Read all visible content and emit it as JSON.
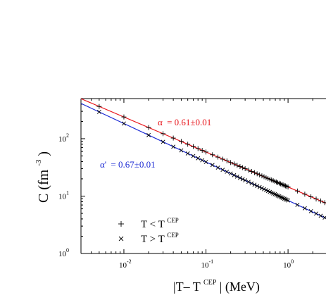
{
  "chart_data": {
    "type": "scatter",
    "x_scale": "log",
    "y_scale": "log",
    "xlim": [
      0.003,
      2.9
    ],
    "ylim": [
      1,
      500
    ],
    "x_ticks": [
      {
        "value": 0.01,
        "base": "10",
        "exp": "-2"
      },
      {
        "value": 0.1,
        "base": "10",
        "exp": "-1"
      },
      {
        "value": 1,
        "base": "10",
        "exp": "0"
      }
    ],
    "y_ticks": [
      {
        "value": 1,
        "base": "10",
        "exp": "0"
      },
      {
        "value": 10,
        "base": "10",
        "exp": "1"
      },
      {
        "value": 100,
        "base": "10",
        "exp": "2"
      }
    ],
    "xlabel": {
      "pre": "|T– T",
      "sup": "CEP",
      "post": "| (MeV)"
    },
    "ylabel": {
      "pre": "C (fm",
      "sup": "-3",
      "post": ")"
    },
    "series": [
      {
        "name": "T < T^CEP",
        "marker": "plus",
        "color": "#000000",
        "coef": 14.4,
        "exponent": -0.61,
        "x": [
          0.005,
          0.01,
          0.02,
          0.03,
          0.04,
          0.05,
          0.06,
          0.07,
          0.08,
          0.09,
          0.1,
          0.12,
          0.14,
          0.16,
          0.18,
          0.2,
          0.22,
          0.24,
          0.26,
          0.28,
          0.3,
          0.33,
          0.36,
          0.39,
          0.42,
          0.45,
          0.48,
          0.51,
          0.54,
          0.57,
          0.6,
          0.63,
          0.66,
          0.69,
          0.72,
          0.75,
          0.78,
          0.81,
          0.84,
          0.87,
          0.9,
          0.93,
          0.96,
          1.0,
          1.3,
          1.6,
          1.9,
          2.2,
          2.5,
          2.8
        ]
      },
      {
        "name": "T > T^CEP",
        "marker": "cross",
        "color": "#000000",
        "coef": 8.4,
        "exponent": -0.67,
        "x": [
          0.005,
          0.01,
          0.02,
          0.03,
          0.04,
          0.05,
          0.06,
          0.07,
          0.08,
          0.09,
          0.1,
          0.12,
          0.14,
          0.16,
          0.18,
          0.2,
          0.22,
          0.24,
          0.26,
          0.28,
          0.3,
          0.33,
          0.36,
          0.39,
          0.42,
          0.45,
          0.48,
          0.51,
          0.54,
          0.57,
          0.6,
          0.63,
          0.66,
          0.69,
          0.72,
          0.75,
          0.78,
          0.81,
          0.84,
          0.87,
          0.9,
          0.93,
          0.96,
          1.0,
          1.3,
          1.6,
          1.9,
          2.2,
          2.5,
          2.8
        ]
      }
    ],
    "fits": [
      {
        "label_sym": "α",
        "label_rest": "=  0.61±0.01",
        "color": "#e8141a",
        "coef": 14.4,
        "exponent": -0.61
      },
      {
        "label_sym": "α'",
        "label_rest": "=  0.67±0.01",
        "color": "#1c2bd4",
        "coef": 8.4,
        "exponent": -0.67
      }
    ],
    "legend": [
      {
        "marker": "plus",
        "pre": "T < T",
        "sup": "CEP"
      },
      {
        "marker": "cross",
        "pre": "T > T",
        "sup": "CEP"
      }
    ],
    "legend_position": "bottom-left",
    "grid": false
  }
}
